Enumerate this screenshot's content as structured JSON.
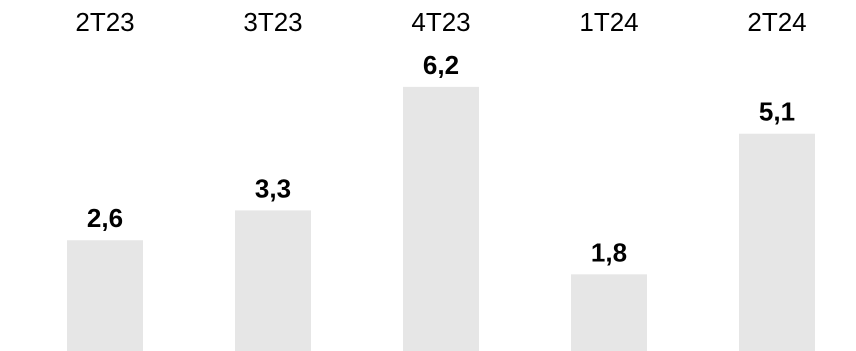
{
  "chart_data": {
    "type": "bar",
    "categories": [
      "2T23",
      "3T23",
      "4T23",
      "1T24",
      "2T24"
    ],
    "values": [
      2.6,
      3.3,
      6.2,
      1.8,
      5.1
    ],
    "value_labels": [
      "2,6",
      "3,3",
      "6,2",
      "1,8",
      "5,1"
    ],
    "category_axis_position": "top",
    "grid": false,
    "legend": false,
    "colors": {
      "bar": "#e6e6e6",
      "text": "#000000"
    }
  }
}
